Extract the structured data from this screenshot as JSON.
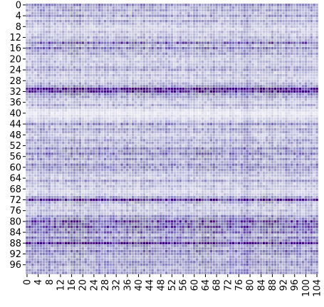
{
  "chart_data": {
    "type": "heatmap",
    "colormap": [
      "#fcfbfd",
      "#efedf5",
      "#dadaeb",
      "#bcbddc",
      "#9e9ac8",
      "#807dba",
      "#6a51a3",
      "#54278f",
      "#3f007d"
    ],
    "cell_border_color": "#ffffff",
    "colorbar": false,
    "rows": 100,
    "cols": 105,
    "row_ticks": [
      "0",
      "4",
      "8",
      "12",
      "16",
      "20",
      "24",
      "28",
      "32",
      "36",
      "40",
      "44",
      "48",
      "52",
      "56",
      "60",
      "64",
      "68",
      "72",
      "76",
      "80",
      "84",
      "88",
      "92",
      "96"
    ],
    "col_ticks": [
      "0",
      "4",
      "8",
      "12",
      "16",
      "20",
      "24",
      "28",
      "32",
      "36",
      "40",
      "44",
      "48",
      "52",
      "56",
      "60",
      "64",
      "68",
      "72",
      "76",
      "80",
      "84",
      "88",
      "92",
      "96",
      "100",
      "104"
    ],
    "value_range": [
      0,
      1
    ],
    "row_intensity": [
      0.55,
      0.4,
      0.45,
      0.35,
      0.5,
      0.3,
      0.45,
      0.35,
      0.3,
      0.25,
      0.35,
      0.3,
      0.4,
      0.35,
      0.7,
      0.4,
      0.6,
      0.4,
      0.45,
      0.35,
      0.3,
      0.35,
      0.3,
      0.4,
      0.45,
      0.3,
      0.35,
      0.3,
      0.3,
      0.4,
      0.5,
      0.95,
      0.85,
      0.5,
      0.45,
      0.35,
      0.3,
      0.4,
      0.3,
      0.2,
      0.15,
      0.2,
      0.25,
      0.3,
      0.55,
      0.35,
      0.45,
      0.4,
      0.3,
      0.35,
      0.45,
      0.4,
      0.35,
      0.55,
      0.45,
      0.6,
      0.4,
      0.5,
      0.35,
      0.55,
      0.5,
      0.45,
      0.4,
      0.35,
      0.3,
      0.5,
      0.3,
      0.35,
      0.3,
      0.25,
      0.3,
      0.45,
      0.85,
      0.4,
      0.35,
      0.3,
      0.35,
      0.3,
      0.5,
      0.55,
      0.8,
      0.6,
      0.75,
      0.55,
      0.65,
      0.4,
      0.6,
      0.5,
      0.9,
      0.5,
      0.45,
      0.6,
      0.5,
      0.4,
      0.45,
      0.55,
      0.5,
      0.4,
      0.45,
      0.5
    ],
    "col_intensity": [
      0.05,
      0.08,
      0.1,
      0.05,
      0.1,
      0.12,
      0.1,
      0.08,
      0.15,
      0.05,
      0.1,
      0.08,
      0.05,
      0.1,
      0.08,
      0.05,
      0.1,
      0.12,
      0.08,
      0.15,
      0.05,
      0.08,
      0.1,
      0.05,
      0.08,
      0.1,
      0.12,
      0.05,
      0.1,
      0.08,
      0.05,
      0.1,
      0.08,
      0.05,
      0.1,
      0.08,
      0.12,
      0.05,
      0.1,
      0.08,
      0.05,
      0.1,
      0.12,
      0.05,
      0.08,
      0.1,
      0.05,
      0.08,
      0.1,
      0.05,
      0.12,
      0.08,
      0.1,
      0.05,
      0.08,
      0.1,
      0.05,
      0.08,
      0.12,
      0.05,
      0.1,
      0.08,
      0.05,
      0.1,
      0.08,
      0.05,
      0.1,
      0.12,
      0.08,
      0.05,
      0.1,
      0.08,
      0.05,
      0.12,
      0.1,
      0.08,
      0.05,
      0.1,
      0.15,
      0.18,
      0.12,
      0.08,
      0.05,
      0.1,
      0.08,
      0.05,
      0.1,
      0.08,
      0.12,
      0.05,
      0.1,
      0.08,
      0.05,
      0.15,
      0.1,
      0.08,
      0.05,
      0.1,
      0.08,
      0.05,
      0.1,
      0.08,
      0.12,
      0.05,
      0.1
    ]
  }
}
